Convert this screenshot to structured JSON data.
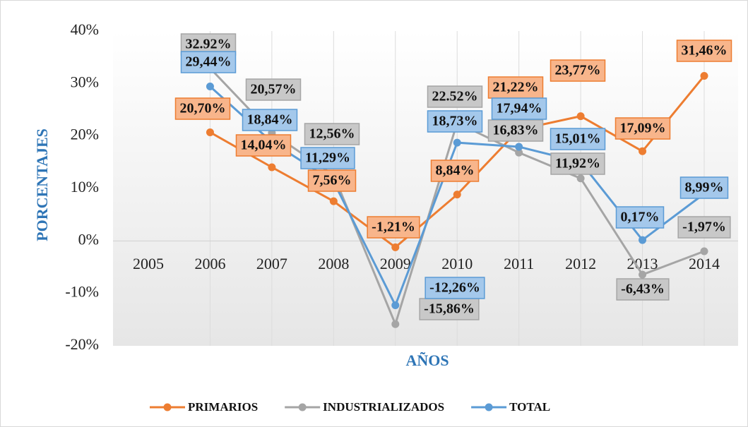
{
  "chart_data": {
    "type": "line",
    "y_label": "PORCENTAJES",
    "x_label": "AÑOS",
    "categories": [
      "2005",
      "2006",
      "2007",
      "2008",
      "2009",
      "2010",
      "2011",
      "2012",
      "2013",
      "2014"
    ],
    "series": [
      {
        "name": "PRIMARIOS",
        "color": "#ed7d31",
        "label_fill": "#f8b58b",
        "values": [
          null,
          20.7,
          14.04,
          7.56,
          -1.21,
          8.84,
          21.22,
          23.77,
          17.09,
          31.46
        ],
        "value_labels": [
          null,
          "20,70%",
          "14,04%",
          "7,56%",
          "-1,21%",
          "8,84%",
          "21,22%",
          "23,77%",
          "17,09%",
          "31,46%"
        ]
      },
      {
        "name": "INDUSTRIALIZADOS",
        "color": "#a5a5a5",
        "label_fill": "#c8c8c8",
        "values": [
          null,
          32.92,
          20.57,
          12.56,
          -15.86,
          22.52,
          16.83,
          11.92,
          -6.43,
          -1.97
        ],
        "value_labels": [
          null,
          "32.92%",
          "20,57%",
          "12,56%",
          "-15,86%",
          "22.52%",
          "16,83%",
          "11,92%",
          "-6,43%",
          "-1,97%"
        ]
      },
      {
        "name": "TOTAL",
        "color": "#5b9bd5",
        "label_fill": "#a4c8eb",
        "values": [
          null,
          29.44,
          18.84,
          11.29,
          -12.26,
          18.73,
          17.94,
          15.01,
          0.17,
          8.99
        ],
        "value_labels": [
          null,
          "29,44%",
          "18,84%",
          "11,29%",
          "-12,26%",
          "18,73%",
          "17,94%",
          "15,01%",
          "0,17%",
          "8,99%"
        ]
      }
    ],
    "ylim": [
      -20,
      40
    ],
    "yticks": [
      {
        "value": -20,
        "label": "-20%"
      },
      {
        "value": -10,
        "label": "-10%"
      },
      {
        "value": 0,
        "label": "0%"
      },
      {
        "value": 10,
        "label": "10%"
      },
      {
        "value": 20,
        "label": "20%"
      },
      {
        "value": 30,
        "label": "30%"
      },
      {
        "value": 40,
        "label": "40%"
      }
    ],
    "grid": false,
    "legend": "bottom"
  }
}
